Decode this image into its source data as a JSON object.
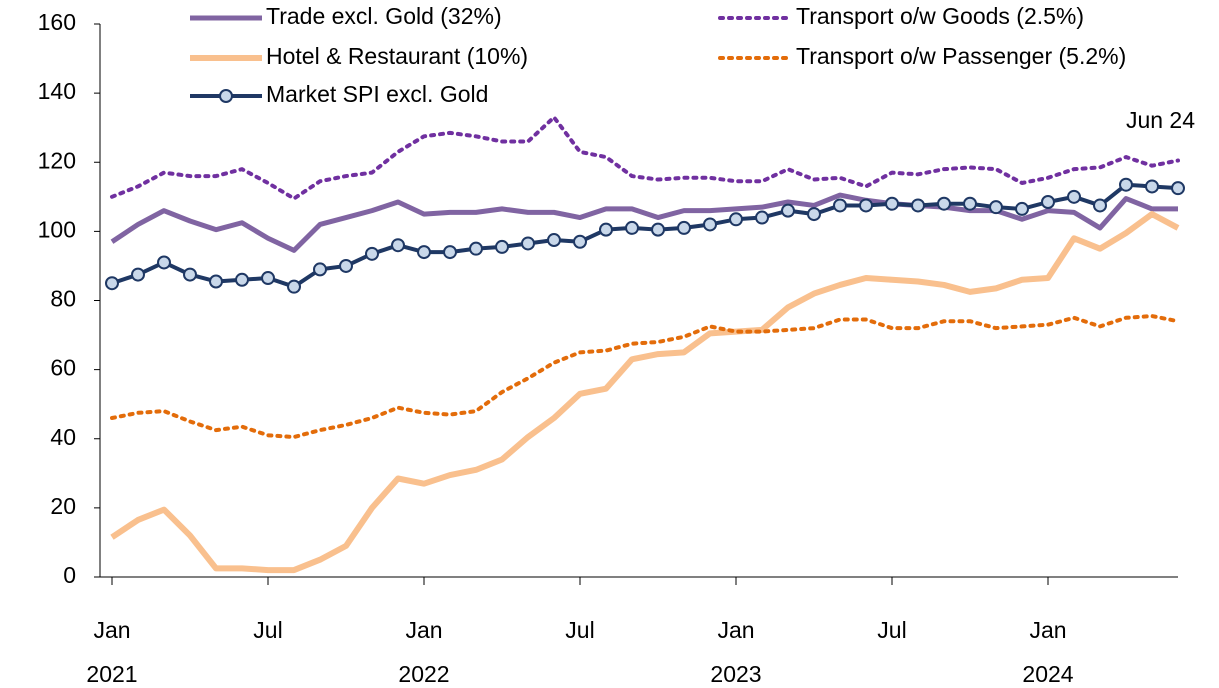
{
  "chart_data": {
    "type": "line",
    "categories": [
      "Jan",
      null,
      null,
      null,
      null,
      null,
      "Jul",
      null,
      null,
      null,
      null,
      null,
      "Jan",
      null,
      null,
      null,
      null,
      null,
      "Jul",
      null,
      null,
      null,
      null,
      null,
      "Jan",
      null,
      null,
      null,
      null,
      null,
      "Jul",
      null,
      null,
      null,
      null,
      null,
      "Jan",
      null,
      null,
      null,
      null,
      null
    ],
    "years": [
      "2021",
      null,
      null,
      null,
      null,
      null,
      null,
      null,
      null,
      null,
      null,
      null,
      "2022",
      null,
      null,
      null,
      null,
      null,
      null,
      null,
      null,
      null,
      null,
      null,
      "2023",
      null,
      null,
      null,
      null,
      null,
      null,
      null,
      null,
      null,
      null,
      null,
      "2024",
      null,
      null,
      null,
      null,
      null
    ],
    "ylim": [
      0,
      160
    ],
    "yticks": [
      0,
      20,
      40,
      60,
      80,
      100,
      120,
      140,
      160
    ],
    "annotation": "Jun 24",
    "series": [
      {
        "name": "Trade excl. Gold (32%)",
        "color": "#8064a2",
        "dash": "solid",
        "width": 5,
        "marker": false,
        "values": [
          97,
          102,
          106,
          103,
          100.5,
          102.5,
          98,
          94.5,
          102,
          104,
          106,
          108.5,
          105,
          105.5,
          105.5,
          106.5,
          105.5,
          105.5,
          104,
          106.5,
          106.5,
          104,
          106,
          106,
          106.5,
          107,
          108.5,
          107.5,
          110.5,
          109,
          108,
          107.5,
          107,
          106,
          106,
          103.5,
          106,
          105.5,
          101,
          109.5,
          106.5,
          106.5
        ]
      },
      {
        "name": "Hotel & Restaurant (10%)",
        "color": "#f9c08e",
        "dash": "solid",
        "width": 6,
        "marker": false,
        "values": [
          11.5,
          16.5,
          19.5,
          12,
          2.5,
          2.5,
          2,
          2,
          5,
          9,
          20,
          28.5,
          27,
          29.5,
          31,
          34,
          40.5,
          46,
          53,
          54.5,
          63,
          64.5,
          65,
          70.5,
          71,
          71.5,
          78,
          82,
          84.5,
          86.5,
          86,
          85.5,
          84.5,
          82.5,
          83.5,
          86,
          86.5,
          98,
          95,
          99.5,
          105,
          101
        ]
      },
      {
        "name": "Market SPI excl. Gold",
        "color": "#1f3864",
        "dash": "solid",
        "width": 4,
        "marker": true,
        "marker_fill": "#c9d8ea",
        "values": [
          85,
          87.5,
          91,
          87.5,
          85.5,
          86,
          86.5,
          84,
          89,
          90,
          93.5,
          96,
          94,
          94,
          95,
          95.5,
          96.5,
          97.5,
          97,
          100.5,
          101,
          100.5,
          101,
          102,
          103.5,
          104,
          106,
          105,
          107.5,
          107.5,
          108,
          107.5,
          108,
          108,
          107,
          106.5,
          108.5,
          110,
          107.5,
          113.5,
          113,
          112.5
        ]
      },
      {
        "name": "Transport o/w Goods (2.5%)",
        "color": "#7030a0",
        "dash": "dotted",
        "width": 4,
        "marker": false,
        "values": [
          110,
          113,
          117,
          116,
          116,
          118,
          114,
          109.5,
          114.5,
          116,
          117,
          123,
          127.5,
          128.5,
          127.5,
          126,
          126,
          133,
          123,
          121.5,
          116,
          115,
          115.5,
          115.5,
          114.5,
          114.5,
          118,
          115,
          115.5,
          113,
          117,
          116.5,
          118,
          118.5,
          118,
          114,
          115.5,
          118,
          118.5,
          121.5,
          119,
          120.5
        ]
      },
      {
        "name": "Transport o/w Passenger (5.2%)",
        "color": "#e36c0a",
        "dash": "dotted",
        "width": 4,
        "marker": false,
        "values": [
          46,
          47.5,
          48,
          45,
          42.5,
          43.5,
          41,
          40.5,
          42.5,
          44,
          46,
          49,
          47.5,
          47,
          48,
          53.5,
          57.5,
          62,
          65,
          65.5,
          67.5,
          68,
          69.5,
          72.5,
          71,
          71,
          71.5,
          72,
          74.5,
          74.5,
          72,
          72,
          74,
          74,
          72,
          72.5,
          73,
          75,
          72.5,
          75,
          75.5,
          74
        ]
      }
    ]
  }
}
